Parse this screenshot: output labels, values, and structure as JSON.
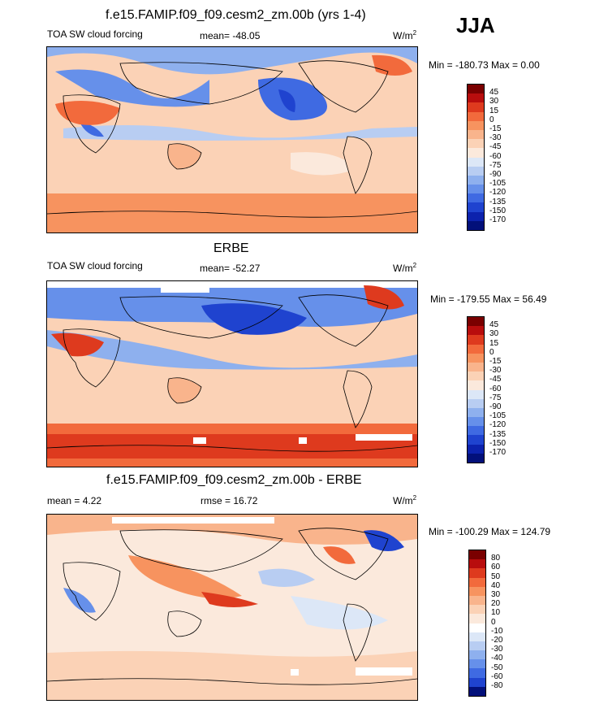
{
  "season": "JJA",
  "panels": [
    {
      "title": "f.e15.FAMIP.f09_f09.cesm2_zm.00b (yrs 1-4)",
      "left_label": "TOA SW cloud forcing",
      "center_label": "mean= -48.05",
      "units": "W/m",
      "units_sup": "2",
      "minmax": "Min = -180.73 Max =   0.00",
      "colorbar_labels": [
        "45",
        "30",
        "15",
        "0",
        "-15",
        "-30",
        "-45",
        "-60",
        "-75",
        "-90",
        "-105",
        "-120",
        "-135",
        "-150",
        "-170"
      ],
      "colorbar_colors": [
        "#7a0000",
        "#b80d0d",
        "#de3a1e",
        "#f26a3c",
        "#f7935f",
        "#f9b48c",
        "#fbd2b6",
        "#fbe9dc",
        "#dce7f7",
        "#b8cdf2",
        "#8eb0ee",
        "#6690ea",
        "#3f6ae2",
        "#1f43cf",
        "#0c22ad",
        "#02107a"
      ]
    },
    {
      "title": "ERBE",
      "left_label": "TOA SW cloud forcing",
      "center_label": "mean= -52.27",
      "units": "W/m",
      "units_sup": "2",
      "minmax": "Min = -179.55 Max =  56.49",
      "colorbar_labels": [
        "45",
        "30",
        "15",
        "0",
        "-15",
        "-30",
        "-45",
        "-60",
        "-75",
        "-90",
        "-105",
        "-120",
        "-135",
        "-150",
        "-170"
      ],
      "colorbar_colors": [
        "#7a0000",
        "#b80d0d",
        "#de3a1e",
        "#f26a3c",
        "#f7935f",
        "#f9b48c",
        "#fbd2b6",
        "#fbe9dc",
        "#dce7f7",
        "#b8cdf2",
        "#8eb0ee",
        "#6690ea",
        "#3f6ae2",
        "#1f43cf",
        "#0c22ad",
        "#02107a"
      ]
    },
    {
      "title": "f.e15.FAMIP.f09_f09.cesm2_zm.00b - ERBE",
      "left_label": "mean =   4.22",
      "center_label": "rmse =  16.72",
      "units": "W/m",
      "units_sup": "2",
      "minmax": "Min = -100.29 Max = 124.79",
      "colorbar_labels": [
        "80",
        "60",
        "50",
        "40",
        "30",
        "20",
        "10",
        "0",
        "-10",
        "-20",
        "-30",
        "-40",
        "-50",
        "-60",
        "-80"
      ],
      "colorbar_colors": [
        "#7a0000",
        "#b80d0d",
        "#de3a1e",
        "#f26a3c",
        "#f7935f",
        "#f9b48c",
        "#fbd2b6",
        "#fbe9dc",
        "#ffffff",
        "#dce7f7",
        "#b8cdf2",
        "#8eb0ee",
        "#6690ea",
        "#3f6ae2",
        "#1f43cf",
        "#02107a"
      ]
    }
  ]
}
